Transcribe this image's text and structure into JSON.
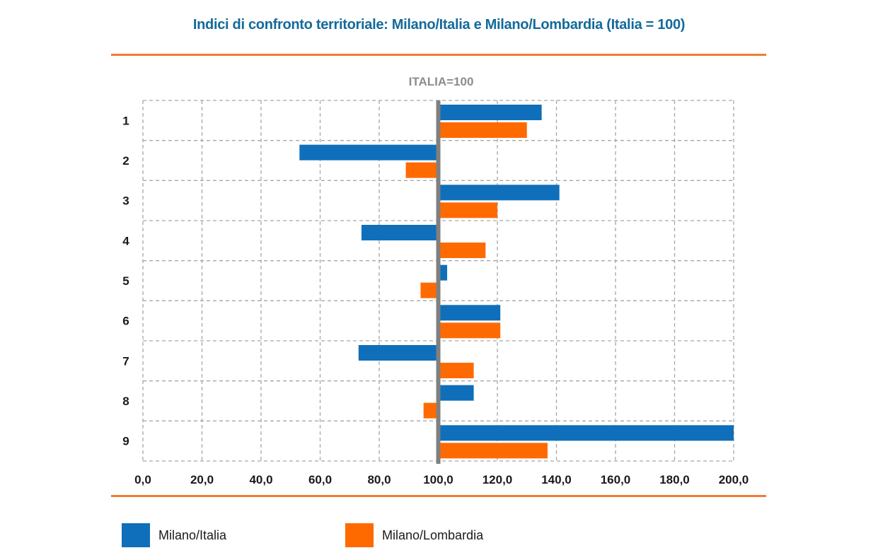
{
  "title": "Indici di confronto territoriale: Milano/Italia e Milano/Lombardia (Italia = 100)",
  "colors": {
    "series1": "#0f6fba",
    "series2": "#ff6a00",
    "rule": "#ef7d32",
    "reference": "#7f7f7f",
    "grid": "#a6a6a6",
    "title": "#136a9a"
  },
  "chart_data": {
    "type": "bar",
    "orientation": "horizontal",
    "title": "Indici di confronto territoriale: Milano/Italia e Milano/Lombardia (Italia = 100)",
    "reference_label": "ITALIA=100",
    "reference_value": 100,
    "categories": [
      "1",
      "2",
      "3",
      "4",
      "5",
      "6",
      "7",
      "8",
      "9"
    ],
    "series": [
      {
        "name": "Milano/Italia",
        "values": [
          135,
          53,
          141,
          74,
          103,
          121,
          73,
          112,
          200
        ]
      },
      {
        "name": "Milano/Lombardia",
        "values": [
          130,
          89,
          120,
          116,
          94,
          121,
          112,
          95,
          137
        ]
      }
    ],
    "xlim": [
      0,
      200
    ],
    "xticks": [
      "0,0",
      "20,0",
      "40,0",
      "60,0",
      "80,0",
      "100,0",
      "120,0",
      "140,0",
      "160,0",
      "180,0",
      "200,0"
    ],
    "grid": true,
    "legend_position": "bottom"
  }
}
